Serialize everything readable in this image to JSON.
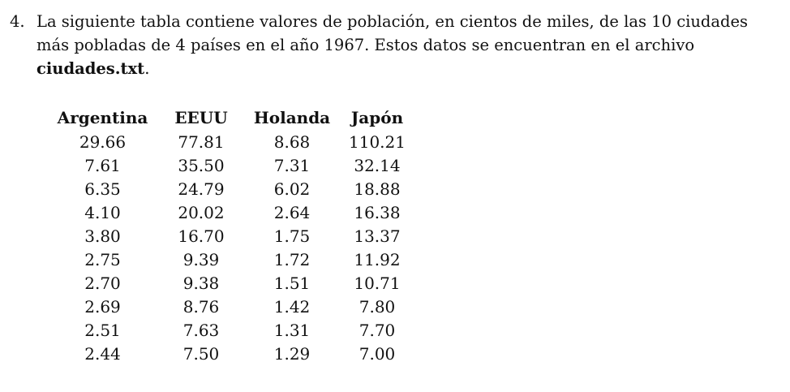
{
  "problem": {
    "number": "4.",
    "text_before_filename": "La siguiente tabla contiene valores de población, en cientos de miles, de las 10 ciudades más pobladas de 4 países en el año 1967. Estos datos se encuentran en el archivo ",
    "filename": "ciudades.txt",
    "text_after_filename": "."
  },
  "table": {
    "headers": [
      "Argentina",
      "EEUU",
      "Holanda",
      "Japón"
    ],
    "rows": [
      [
        "29.66",
        "77.81",
        "8.68",
        "110.21"
      ],
      [
        "7.61",
        "35.50",
        "7.31",
        "32.14"
      ],
      [
        "6.35",
        "24.79",
        "6.02",
        "18.88"
      ],
      [
        "4.10",
        "20.02",
        "2.64",
        "16.38"
      ],
      [
        "3.80",
        "16.70",
        "1.75",
        "13.37"
      ],
      [
        "2.75",
        "9.39",
        "1.72",
        "11.92"
      ],
      [
        "2.70",
        "9.38",
        "1.51",
        "10.71"
      ],
      [
        "2.69",
        "8.76",
        "1.42",
        "7.80"
      ],
      [
        "2.51",
        "7.63",
        "1.31",
        "7.70"
      ],
      [
        "2.44",
        "7.50",
        "1.29",
        "7.00"
      ]
    ]
  }
}
